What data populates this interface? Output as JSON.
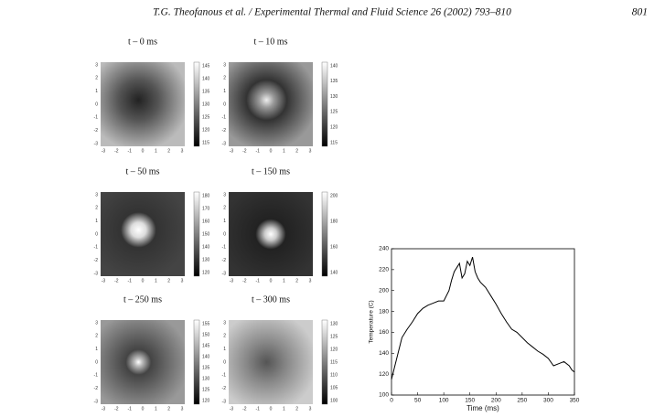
{
  "header": {
    "running_title": "T.G. Theofanous et al. / Experimental Thermal and Fluid Science 26 (2002) 793–810",
    "page_number": "801"
  },
  "image_axis_ticks": [
    -3,
    -2,
    -1,
    0,
    1,
    2,
    3
  ],
  "panels": [
    {
      "title": "t – 0 ms",
      "colorbar_ticks": [
        145,
        140,
        135,
        130,
        125,
        120,
        115
      ]
    },
    {
      "title": "t – 10 ms",
      "colorbar_ticks": [
        140,
        135,
        130,
        125,
        120,
        115
      ]
    },
    {
      "title": "t – 50 ms",
      "colorbar_ticks": [
        180,
        170,
        160,
        150,
        140,
        130,
        120
      ]
    },
    {
      "title": "t – 150 ms",
      "colorbar_ticks": [
        200,
        180,
        160,
        140
      ]
    },
    {
      "title": "t – 250 ms",
      "colorbar_ticks": [
        155,
        150,
        145,
        140,
        135,
        130,
        125,
        120
      ]
    },
    {
      "title": "t – 300 ms",
      "colorbar_ticks": [
        130,
        125,
        120,
        115,
        110,
        105,
        100
      ]
    }
  ],
  "chart_data": {
    "type": "line",
    "x_label": "Time (ms)",
    "y_label": "Temperature (C)",
    "color": "#000000",
    "x": [
      0,
      5,
      10,
      15,
      20,
      30,
      40,
      50,
      60,
      70,
      80,
      90,
      100,
      110,
      115,
      120,
      125,
      130,
      135,
      140,
      145,
      150,
      155,
      160,
      165,
      170,
      180,
      190,
      200,
      210,
      220,
      230,
      240,
      250,
      260,
      270,
      280,
      290,
      300,
      310,
      320,
      330,
      340,
      345,
      350
    ],
    "values": [
      115,
      125,
      135,
      145,
      155,
      163,
      170,
      178,
      183,
      186,
      188,
      190,
      190,
      200,
      210,
      218,
      222,
      226,
      212,
      216,
      228,
      224,
      232,
      218,
      212,
      208,
      203,
      195,
      187,
      178,
      170,
      163,
      160,
      155,
      150,
      146,
      142,
      139,
      135,
      128,
      130,
      132,
      128,
      124,
      122
    ],
    "xlim": [
      0,
      350
    ],
    "ylim": [
      100,
      240
    ],
    "xticks": [
      0,
      50,
      100,
      150,
      200,
      250,
      300,
      350
    ],
    "yticks": [
      100,
      120,
      140,
      160,
      180,
      200,
      220,
      240
    ]
  }
}
